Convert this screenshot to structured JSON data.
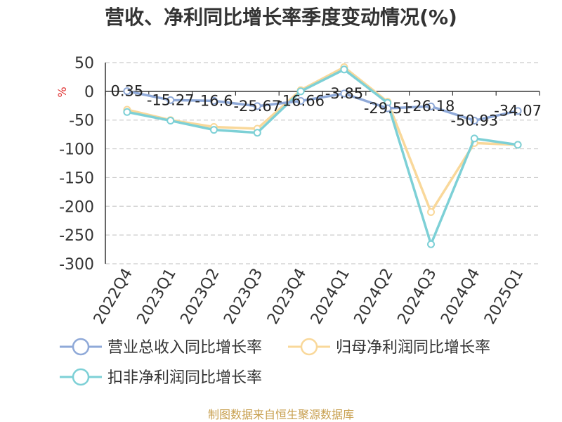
{
  "chart_data": {
    "type": "line",
    "title": "营收、净利同比增长率季度变动情况(%)",
    "ylabel": "%",
    "categories": [
      "2022Q4",
      "2023Q1",
      "2023Q2",
      "2023Q3",
      "2023Q4",
      "2024Q1",
      "2024Q2",
      "2024Q3",
      "2024Q4",
      "2025Q1"
    ],
    "ylim": [
      -300,
      50
    ],
    "yticks": [
      50,
      0,
      -50,
      -100,
      -150,
      -200,
      -250,
      -300
    ],
    "grid": true,
    "legend_position": "bottom",
    "series": [
      {
        "name": "营业总收入同比增长率",
        "color": "#8fa9d8",
        "values": [
          0.35,
          -15.27,
          -16.6,
          -25.67,
          -16.66,
          -3.85,
          -29.51,
          -26.18,
          -50.93,
          -34.07
        ],
        "labels": [
          "0.35",
          "-15.27",
          "-16.6",
          "-25.67",
          "-16.66",
          "-3.85",
          "-29.51",
          "-26.18",
          "-50.93",
          "-34.07"
        ]
      },
      {
        "name": "归母净利润同比增长率",
        "color": "#f9d89a",
        "values": [
          -32,
          -50,
          -62,
          -65,
          2,
          42,
          -18,
          -210,
          -90,
          -93
        ]
      },
      {
        "name": "扣非净利润同比增长率",
        "color": "#7dd0d6",
        "values": [
          -36,
          -51,
          -67,
          -72,
          0,
          38,
          -20,
          -266,
          -82,
          -93
        ]
      }
    ]
  },
  "source_text": "制图数据来自恒生聚源数据库"
}
